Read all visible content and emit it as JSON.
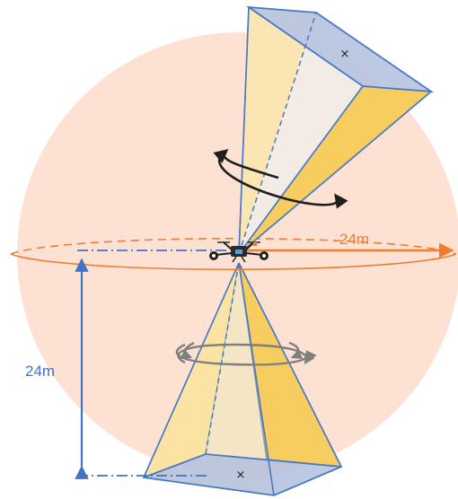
{
  "labels": {
    "horizontal_radius": "24m",
    "vertical_height": "24m"
  },
  "colors": {
    "sphere": "#fde1d3",
    "pyramid_light": "#fbe8b6",
    "pyramid_gold": "#f7cd5f",
    "pyramid_inner": "#f2ebe6",
    "pyramid_base": "#b6c3df",
    "pyramid_edge": "#4a79c4",
    "horizontal_ring": "#ed7d31",
    "measure_blue": "#4472c4",
    "rotation_dark": "#1f1f1f",
    "rotation_gray": "#7f7f7f"
  },
  "icons": {
    "drone": "quadcopter-icon",
    "upper_center_mark": "x-marker",
    "lower_center_mark": "x-marker"
  }
}
